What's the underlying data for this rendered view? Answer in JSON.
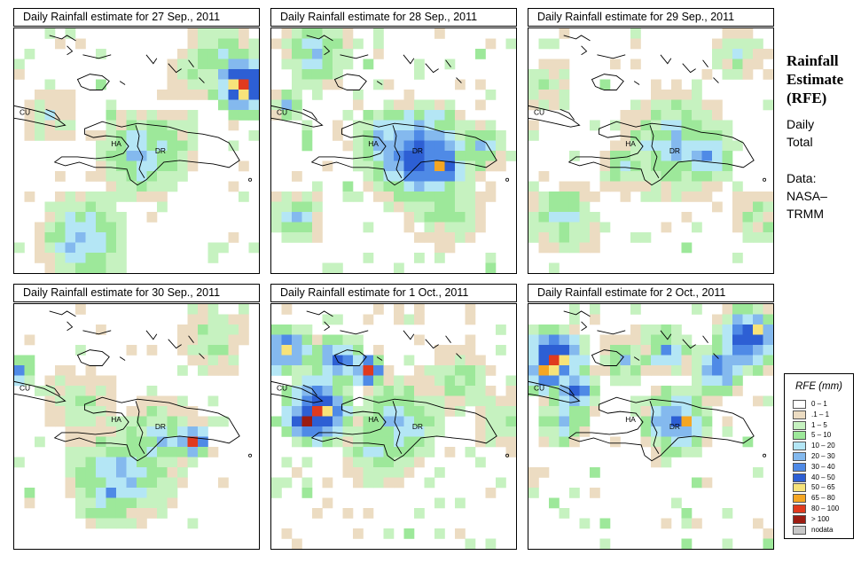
{
  "side": {
    "title_lines": [
      "Rainfall",
      "Estimate",
      "(RFE)"
    ],
    "note1_lines": [
      "Daily",
      "Total"
    ],
    "note2_lines": [
      "Data:",
      "NASA–",
      "TRMM"
    ]
  },
  "legend": {
    "title": "RFE (mm)",
    "items": [
      {
        "label": "0 – 1",
        "color": "#ffffff"
      },
      {
        "label": ".1 – 1",
        "color": "#ecdcc2"
      },
      {
        "label": "1 – 5",
        "color": "#c6f2c0"
      },
      {
        "label": "5 – 10",
        "color": "#9de89a"
      },
      {
        "label": "10 – 20",
        "color": "#b4e6f5"
      },
      {
        "label": "20 – 30",
        "color": "#84b9ee"
      },
      {
        "label": "30 – 40",
        "color": "#4f8ae6"
      },
      {
        "label": "40 – 50",
        "color": "#2d5fd4"
      },
      {
        "label": "50 – 65",
        "color": "#f7e37a"
      },
      {
        "label": "65 – 80",
        "color": "#f5a623"
      },
      {
        "label": "80 – 100",
        "color": "#e03a1e"
      },
      {
        "label": "> 100",
        "color": "#9c1c12"
      },
      {
        "label": "nodata",
        "color": "#c8c8c8"
      }
    ]
  },
  "map_labels": {
    "cu": "CU",
    "ha": "HA",
    "dr": "DR"
  },
  "panels": [
    {
      "title": "Daily Rainfall estimate for  27 Sep., 2011"
    },
    {
      "title": "Daily Rainfall estimate for  28 Sep., 2011"
    },
    {
      "title": "Daily Rainfall estimate for  29 Sep., 2011"
    },
    {
      "title": "Daily Rainfall estimate for  30 Sep., 2011"
    },
    {
      "title": "Daily Rainfall estimate for  1 Oct., 2011"
    },
    {
      "title": "Daily Rainfall estimate for  2 Oct., 2011"
    }
  ]
}
